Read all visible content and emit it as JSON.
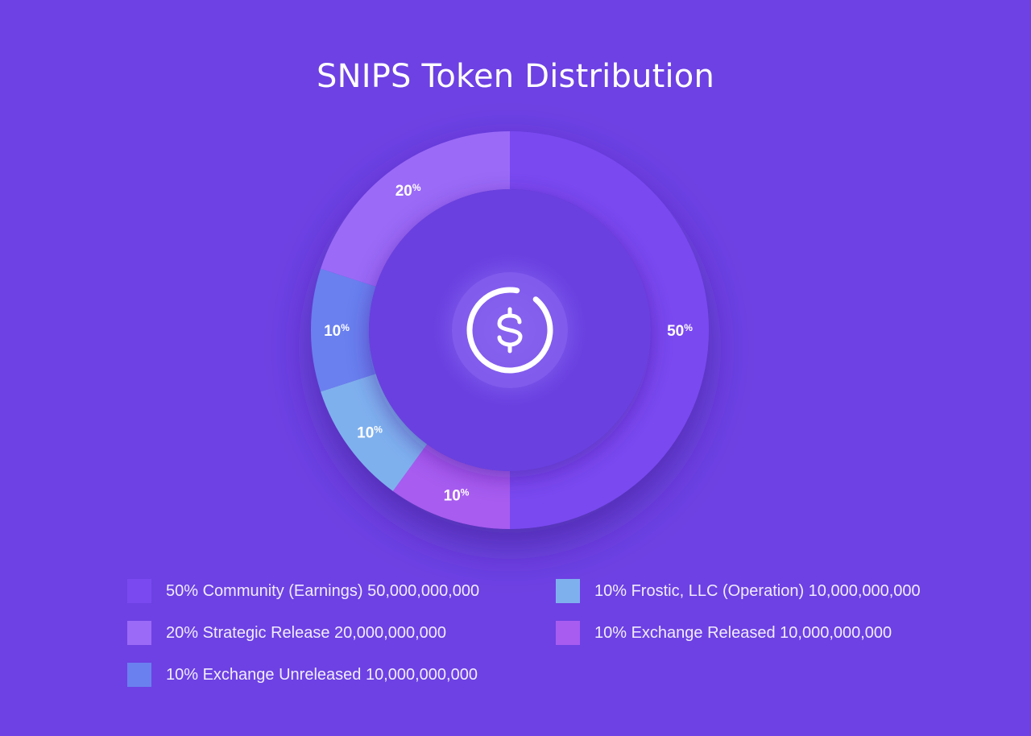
{
  "chart_data": {
    "type": "pie",
    "title": "SNIPS Token Distribution",
    "center_icon": "dollar-coin-icon",
    "slices": [
      {
        "label": "Community (Earnings)",
        "value": 50,
        "value_label": "50",
        "legend": "50% Community (Earnings) 50,000,000,000",
        "color": "#7a4af0"
      },
      {
        "label": "Exchange Released",
        "value": 10,
        "value_label": "10",
        "legend": "10% Exchange Released 10,000,000,000",
        "color": "#a85cf0"
      },
      {
        "label": "Frostic, LLC (Operation)",
        "value": 10,
        "value_label": "10",
        "legend": "10% Frostic, LLC (Operation) 10,000,000,000",
        "color": "#7fb0ee"
      },
      {
        "label": "Exchange Unreleased",
        "value": 10,
        "value_label": "10",
        "legend": "10% Exchange Unreleased 10,000,000,000",
        "color": "#6a80ef"
      },
      {
        "label": "Strategic Release",
        "value": 20,
        "value_label": "20",
        "legend": "20% Strategic Release 20,000,000,000",
        "color": "#9b6af7"
      }
    ],
    "percent_sign": "%",
    "legend_placement": "bottom"
  },
  "colors": {
    "background": "#6d41e3",
    "inner_disc": "#6a3fe0",
    "center_glow": "#8a63ef",
    "text": "#ffffff"
  }
}
